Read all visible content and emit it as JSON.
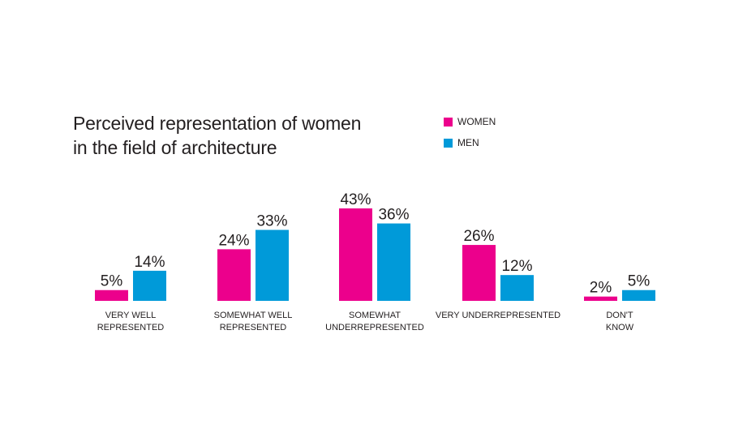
{
  "chart_data": {
    "type": "bar",
    "title_lines": [
      "Perceived representation of women",
      "in the field of architecture"
    ],
    "categories": [
      [
        "VERY WELL",
        "REPRESENTED"
      ],
      [
        "SOMEWHAT WELL",
        "REPRESENTED"
      ],
      [
        "SOMEWHAT",
        "UNDERREPRESENTED"
      ],
      [
        "VERY UNDERREPRESENTED"
      ],
      [
        "DON'T",
        "KNOW"
      ]
    ],
    "series": [
      {
        "name": "WOMEN",
        "color": "#ec008c",
        "values": [
          5,
          24,
          43,
          26,
          2
        ],
        "labels": [
          "5%",
          "24%",
          "43%",
          "26%",
          "2%"
        ]
      },
      {
        "name": "MEN",
        "color": "#009ad9",
        "values": [
          14,
          33,
          36,
          12,
          5
        ],
        "labels": [
          "14%",
          "33%",
          "36%",
          "12%",
          "5%"
        ]
      }
    ],
    "ylim": [
      0,
      43
    ],
    "legend_position": "top-right",
    "grid": false
  }
}
